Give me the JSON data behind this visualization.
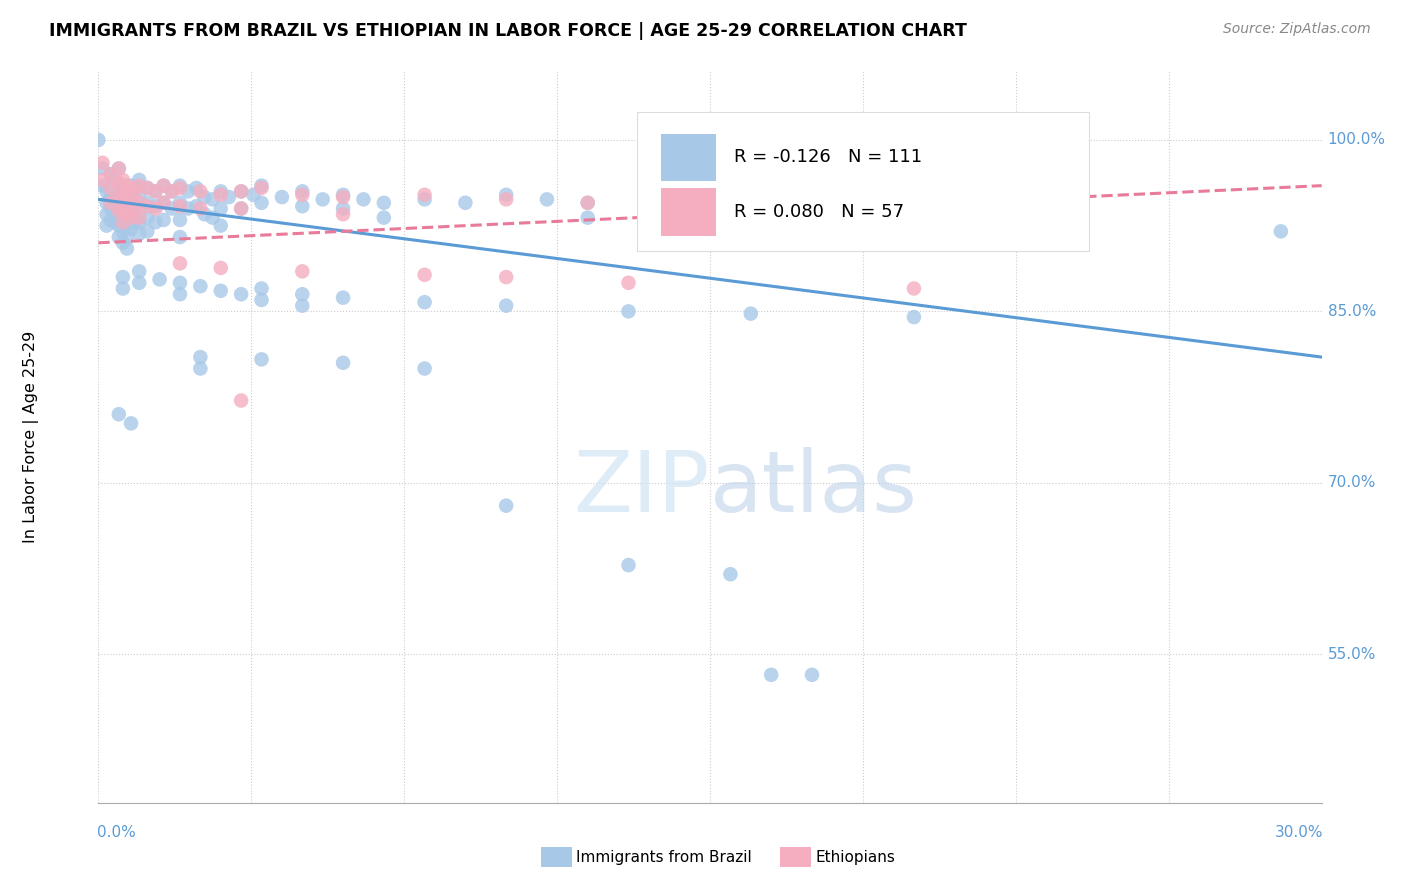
{
  "title": "IMMIGRANTS FROM BRAZIL VS ETHIOPIAN IN LABOR FORCE | AGE 25-29 CORRELATION CHART",
  "source": "Source: ZipAtlas.com",
  "ylabel": "In Labor Force | Age 25-29",
  "brazil_color": "#a8c8e8",
  "ethiopian_color": "#f4aec0",
  "brazil_line_color": "#5b9bd5",
  "ethiopian_line_color": "#e87a9a",
  "label_color": "#5b9bd5",
  "brazil_R": -0.126,
  "ethiopian_R": 0.08,
  "xlim": [
    0.0,
    0.3
  ],
  "ylim": [
    0.42,
    1.06
  ],
  "ytick_vals": [
    0.55,
    0.7,
    0.85,
    1.0
  ],
  "ytick_labels": [
    "55.0%",
    "70.0%",
    "85.0%",
    "100.0%"
  ],
  "brazil_scatter": [
    [
      0.0,
      1.0
    ],
    [
      0.001,
      0.975
    ],
    [
      0.001,
      0.96
    ],
    [
      0.002,
      0.955
    ],
    [
      0.002,
      0.945
    ],
    [
      0.002,
      0.935
    ],
    [
      0.002,
      0.925
    ],
    [
      0.003,
      0.97
    ],
    [
      0.003,
      0.95
    ],
    [
      0.003,
      0.94
    ],
    [
      0.003,
      0.93
    ],
    [
      0.004,
      0.965
    ],
    [
      0.004,
      0.948
    ],
    [
      0.004,
      0.938
    ],
    [
      0.004,
      0.928
    ],
    [
      0.005,
      0.975
    ],
    [
      0.005,
      0.955
    ],
    [
      0.005,
      0.945
    ],
    [
      0.005,
      0.935
    ],
    [
      0.005,
      0.925
    ],
    [
      0.005,
      0.915
    ],
    [
      0.006,
      0.96
    ],
    [
      0.006,
      0.95
    ],
    [
      0.006,
      0.94
    ],
    [
      0.006,
      0.93
    ],
    [
      0.006,
      0.92
    ],
    [
      0.006,
      0.91
    ],
    [
      0.007,
      0.955
    ],
    [
      0.007,
      0.945
    ],
    [
      0.007,
      0.935
    ],
    [
      0.007,
      0.925
    ],
    [
      0.007,
      0.915
    ],
    [
      0.007,
      0.905
    ],
    [
      0.008,
      0.96
    ],
    [
      0.008,
      0.948
    ],
    [
      0.008,
      0.935
    ],
    [
      0.008,
      0.922
    ],
    [
      0.009,
      0.958
    ],
    [
      0.009,
      0.942
    ],
    [
      0.009,
      0.928
    ],
    [
      0.01,
      0.965
    ],
    [
      0.01,
      0.952
    ],
    [
      0.01,
      0.94
    ],
    [
      0.01,
      0.928
    ],
    [
      0.01,
      0.918
    ],
    [
      0.012,
      0.958
    ],
    [
      0.012,
      0.945
    ],
    [
      0.012,
      0.932
    ],
    [
      0.012,
      0.92
    ],
    [
      0.014,
      0.955
    ],
    [
      0.014,
      0.942
    ],
    [
      0.014,
      0.928
    ],
    [
      0.016,
      0.96
    ],
    [
      0.016,
      0.945
    ],
    [
      0.016,
      0.93
    ],
    [
      0.018,
      0.955
    ],
    [
      0.018,
      0.94
    ],
    [
      0.02,
      0.96
    ],
    [
      0.02,
      0.945
    ],
    [
      0.02,
      0.93
    ],
    [
      0.02,
      0.915
    ],
    [
      0.022,
      0.955
    ],
    [
      0.022,
      0.94
    ],
    [
      0.024,
      0.958
    ],
    [
      0.024,
      0.942
    ],
    [
      0.026,
      0.95
    ],
    [
      0.026,
      0.935
    ],
    [
      0.028,
      0.948
    ],
    [
      0.028,
      0.932
    ],
    [
      0.03,
      0.955
    ],
    [
      0.03,
      0.94
    ],
    [
      0.03,
      0.925
    ],
    [
      0.032,
      0.95
    ],
    [
      0.035,
      0.955
    ],
    [
      0.035,
      0.94
    ],
    [
      0.038,
      0.952
    ],
    [
      0.04,
      0.96
    ],
    [
      0.04,
      0.945
    ],
    [
      0.045,
      0.95
    ],
    [
      0.05,
      0.955
    ],
    [
      0.05,
      0.942
    ],
    [
      0.055,
      0.948
    ],
    [
      0.06,
      0.952
    ],
    [
      0.06,
      0.94
    ],
    [
      0.065,
      0.948
    ],
    [
      0.07,
      0.945
    ],
    [
      0.07,
      0.932
    ],
    [
      0.08,
      0.948
    ],
    [
      0.09,
      0.945
    ],
    [
      0.1,
      0.952
    ],
    [
      0.11,
      0.948
    ],
    [
      0.12,
      0.945
    ],
    [
      0.12,
      0.932
    ],
    [
      0.135,
      0.942
    ],
    [
      0.15,
      0.938
    ],
    [
      0.17,
      0.935
    ],
    [
      0.19,
      0.932
    ],
    [
      0.21,
      0.928
    ],
    [
      0.29,
      0.92
    ],
    [
      0.006,
      0.88
    ],
    [
      0.006,
      0.87
    ],
    [
      0.01,
      0.885
    ],
    [
      0.01,
      0.875
    ],
    [
      0.015,
      0.878
    ],
    [
      0.02,
      0.875
    ],
    [
      0.02,
      0.865
    ],
    [
      0.025,
      0.872
    ],
    [
      0.03,
      0.868
    ],
    [
      0.035,
      0.865
    ],
    [
      0.04,
      0.87
    ],
    [
      0.04,
      0.86
    ],
    [
      0.05,
      0.865
    ],
    [
      0.05,
      0.855
    ],
    [
      0.06,
      0.862
    ],
    [
      0.08,
      0.858
    ],
    [
      0.1,
      0.855
    ],
    [
      0.13,
      0.85
    ],
    [
      0.16,
      0.848
    ],
    [
      0.2,
      0.845
    ],
    [
      0.025,
      0.81
    ],
    [
      0.025,
      0.8
    ],
    [
      0.04,
      0.808
    ],
    [
      0.06,
      0.805
    ],
    [
      0.08,
      0.8
    ],
    [
      0.005,
      0.76
    ],
    [
      0.008,
      0.752
    ],
    [
      0.1,
      0.68
    ],
    [
      0.13,
      0.628
    ],
    [
      0.155,
      0.62
    ],
    [
      0.165,
      0.532
    ],
    [
      0.175,
      0.532
    ]
  ],
  "ethiopian_scatter": [
    [
      0.001,
      0.98
    ],
    [
      0.001,
      0.965
    ],
    [
      0.003,
      0.97
    ],
    [
      0.003,
      0.958
    ],
    [
      0.003,
      0.945
    ],
    [
      0.005,
      0.975
    ],
    [
      0.005,
      0.962
    ],
    [
      0.005,
      0.95
    ],
    [
      0.005,
      0.938
    ],
    [
      0.006,
      0.965
    ],
    [
      0.006,
      0.952
    ],
    [
      0.006,
      0.94
    ],
    [
      0.006,
      0.928
    ],
    [
      0.007,
      0.96
    ],
    [
      0.007,
      0.948
    ],
    [
      0.007,
      0.935
    ],
    [
      0.008,
      0.958
    ],
    [
      0.008,
      0.945
    ],
    [
      0.008,
      0.932
    ],
    [
      0.009,
      0.955
    ],
    [
      0.009,
      0.94
    ],
    [
      0.01,
      0.96
    ],
    [
      0.01,
      0.945
    ],
    [
      0.01,
      0.932
    ],
    [
      0.012,
      0.958
    ],
    [
      0.012,
      0.942
    ],
    [
      0.014,
      0.955
    ],
    [
      0.014,
      0.94
    ],
    [
      0.016,
      0.96
    ],
    [
      0.016,
      0.945
    ],
    [
      0.018,
      0.955
    ],
    [
      0.02,
      0.958
    ],
    [
      0.02,
      0.942
    ],
    [
      0.025,
      0.955
    ],
    [
      0.025,
      0.94
    ],
    [
      0.03,
      0.952
    ],
    [
      0.035,
      0.955
    ],
    [
      0.035,
      0.94
    ],
    [
      0.04,
      0.958
    ],
    [
      0.05,
      0.952
    ],
    [
      0.06,
      0.95
    ],
    [
      0.06,
      0.935
    ],
    [
      0.08,
      0.952
    ],
    [
      0.1,
      0.948
    ],
    [
      0.12,
      0.945
    ],
    [
      0.14,
      0.942
    ],
    [
      0.16,
      0.94
    ],
    [
      0.2,
      0.938
    ],
    [
      0.02,
      0.892
    ],
    [
      0.03,
      0.888
    ],
    [
      0.05,
      0.885
    ],
    [
      0.08,
      0.882
    ],
    [
      0.1,
      0.88
    ],
    [
      0.13,
      0.875
    ],
    [
      0.2,
      0.87
    ],
    [
      0.035,
      0.772
    ]
  ],
  "brazil_trend": [
    0.0,
    0.3
  ],
  "brazil_trend_y": [
    0.948,
    0.81
  ],
  "ethiopian_trend_y": [
    0.91,
    0.96
  ]
}
